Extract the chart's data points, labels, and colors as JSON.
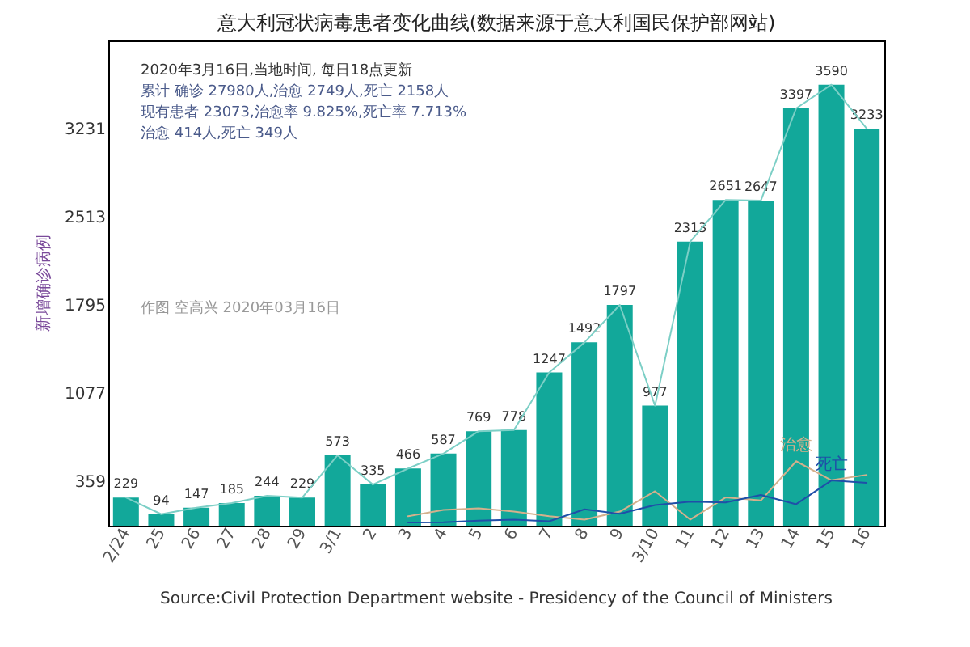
{
  "chart_data": {
    "type": "bar",
    "title": "意大利冠状病毒患者变化曲线(数据来源于意大利国民保护部网站)",
    "ylabel": "新增确诊病例",
    "categories": [
      "2/24",
      "25",
      "26",
      "27",
      "28",
      "29",
      "3/1",
      "2",
      "3",
      "4",
      "5",
      "6",
      "7",
      "8",
      "9",
      "3/10",
      "11",
      "12",
      "13",
      "14",
      "15",
      "16"
    ],
    "series": [
      {
        "color": "#12a89a",
        "values": [
          229,
          94,
          147,
          185,
          244,
          229,
          573,
          335,
          466,
          587,
          769,
          778,
          1247,
          1492,
          1797,
          977,
          2313,
          2651,
          2647,
          3397,
          3590,
          3233
        ],
        "value_labels": [
          "229",
          "94",
          "147",
          "185",
          "244",
          "229",
          "573",
          "335",
          "466",
          "587",
          "769",
          "778",
          "1247",
          "1492",
          "1797",
          "977",
          "2313",
          "2651",
          "2647",
          "3397",
          "3590",
          "3233"
        ]
      },
      {
        "type": "line",
        "color": "#7ccfc6",
        "values": [
          229,
          94,
          147,
          185,
          244,
          229,
          573,
          335,
          466,
          587,
          769,
          778,
          1247,
          1492,
          1797,
          977,
          2313,
          2651,
          2647,
          3397,
          3590,
          3233
        ]
      },
      {
        "type": "line",
        "name": "治愈",
        "color": "#d4b08c",
        "values": [
          null,
          null,
          null,
          null,
          null,
          null,
          null,
          null,
          77,
          128,
          141,
          115,
          77,
          50,
          115,
          280,
          50,
          230,
          205,
          525,
          370,
          414
        ]
      },
      {
        "type": "line",
        "name": "死亡",
        "color": "#1f4fa8",
        "values": [
          null,
          null,
          null,
          null,
          null,
          null,
          null,
          null,
          27,
          28,
          41,
          49,
          36,
          133,
          97,
          168,
          196,
          189,
          250,
          175,
          368,
          349
        ]
      }
    ],
    "ylim": [
      0,
      3950
    ],
    "yticks": [
      359,
      1077,
      1795,
      2513,
      3231
    ],
    "grid": false,
    "legend": false,
    "annotations": [
      "2020年3月16日,当地时间, 每日18点更新",
      "累计 确诊 27980人,治愈 2749人,死亡 2158人",
      "现有患者 23073,治愈率 9.825%,死亡率 7.713%",
      "治愈 414人,死亡 349人",
      "作图 空高兴 2020年03月16日",
      "Source:Civil Protection Department website - Presidency of the Council of Ministers"
    ]
  }
}
